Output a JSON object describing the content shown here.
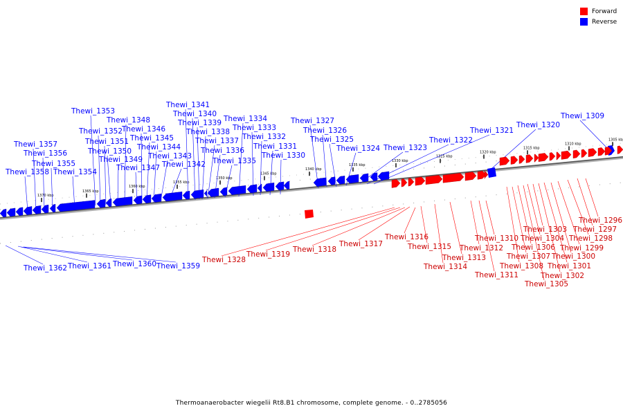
{
  "legend": {
    "forward": {
      "label": "Forward",
      "color": "#ff0000"
    },
    "reverse": {
      "label": "Reverse",
      "color": "#0000ff"
    }
  },
  "caption": "Thermoanaerobacter wiegelii Rt8.B1 chromosome, complete genome. - 0..2785056",
  "ticks": [
    "1370 kbp",
    "1365 kbp",
    "1360 kbp",
    "1355 kbp",
    "1350 kbp",
    "1345 kbp",
    "1340 kbp",
    "1335 kbp",
    "1330 kbp",
    "1325 kbp",
    "1320 kbp",
    "1315 kbp",
    "1310 kbp",
    "1305 kbp"
  ],
  "reverse_genes": [
    "Thewi_1362",
    "Thewi_1361",
    "Thewi_1360",
    "Thewi_1359",
    "Thewi_1358",
    "Thewi_1357",
    "Thewi_1356",
    "Thewi_1355",
    "Thewi_1354",
    "Thewi_1353",
    "Thewi_1352",
    "Thewi_1351",
    "Thewi_1350",
    "Thewi_1349",
    "Thewi_1348",
    "Thewi_1347",
    "Thewi_1346",
    "Thewi_1345",
    "Thewi_1344",
    "Thewi_1343",
    "Thewi_1342",
    "Thewi_1341",
    "Thewi_1340",
    "Thewi_1339",
    "Thewi_1338",
    "Thewi_1337",
    "Thewi_1336",
    "Thewi_1335",
    "Thewi_1334",
    "Thewi_1333",
    "Thewi_1332",
    "Thewi_1331",
    "Thewi_1330",
    "Thewi_1327",
    "Thewi_1326",
    "Thewi_1325",
    "Thewi_1324",
    "Thewi_1323",
    "Thewi_1322",
    "Thewi_1321",
    "Thewi_1320",
    "Thewi_1309"
  ],
  "forward_genes": [
    "Thewi_1328",
    "Thewi_1319",
    "Thewi_1318",
    "Thewi_1317",
    "Thewi_1316",
    "Thewi_1315",
    "Thewi_1314",
    "Thewi_1313",
    "Thewi_1312",
    "Thewi_1311",
    "Thewi_1310",
    "Thewi_1308",
    "Thewi_1307",
    "Thewi_1306",
    "Thewi_1305",
    "Thewi_1304",
    "Thewi_1303",
    "Thewi_1302",
    "Thewi_1301",
    "Thewi_1300",
    "Thewi_1299",
    "Thewi_1298",
    "Thewi_1297",
    "Thewi_1296"
  ]
}
